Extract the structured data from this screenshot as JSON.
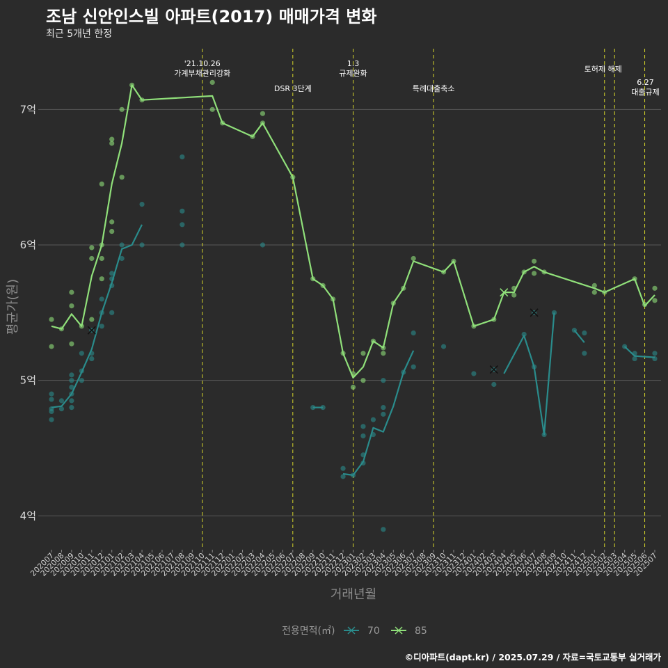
{
  "title": "조남 신안인스빌 아파트(2017) 매매가격 변화",
  "subtitle": "최근 5개년 한정",
  "caption": "©디아파트(dapt.kr) / 2025.07.29 / 자료=국토교통부 실거래가",
  "chart_data": {
    "type": "line",
    "xlabel": "거래년월",
    "ylabel": "평균가(원)",
    "ylim": [
      3.75,
      7.5
    ],
    "yticks": [
      {
        "v": 4,
        "label": "4억"
      },
      {
        "v": 5,
        "label": "5억"
      },
      {
        "v": 6,
        "label": "6억"
      },
      {
        "v": 7,
        "label": "7억"
      }
    ],
    "x_categories": [
      "202007",
      "202008",
      "202009",
      "202010",
      "202011",
      "202012",
      "202101",
      "202102",
      "202103",
      "202104",
      "202105",
      "202106",
      "202107",
      "202108",
      "202109",
      "202110",
      "202111",
      "202112",
      "202201",
      "202202",
      "202203",
      "202204",
      "202205",
      "202206",
      "202207",
      "202208",
      "202209",
      "202210",
      "202211",
      "202212",
      "202301",
      "202302",
      "202303",
      "202304",
      "202305",
      "202306",
      "202307",
      "202308",
      "202309",
      "202310",
      "202311",
      "202312",
      "202401",
      "202402",
      "202403",
      "202404",
      "202405",
      "202406",
      "202407",
      "202408",
      "202409",
      "202410",
      "202411",
      "202412",
      "202501",
      "202502",
      "202503",
      "202504",
      "202505",
      "202506",
      "202507"
    ],
    "grid": true,
    "legend": {
      "title": "전용면적(㎡)",
      "position": "bottom"
    },
    "series": [
      {
        "name": "70",
        "color": "#2a8c8c",
        "segments": [
          [
            [
              0,
              4.8
            ],
            [
              1,
              4.81
            ],
            [
              2,
              4.9
            ],
            [
              3,
              5.06
            ],
            [
              4,
              5.23
            ],
            [
              5,
              5.5
            ],
            [
              6,
              5.72
            ],
            [
              7,
              5.97
            ],
            [
              8,
              6.0
            ],
            [
              9,
              6.15
            ]
          ],
          [
            [
              26,
              4.8
            ],
            [
              27,
              4.8
            ]
          ],
          [
            [
              29,
              4.31
            ],
            [
              30,
              4.3
            ],
            [
              31,
              4.4
            ],
            [
              32,
              4.65
            ],
            [
              33,
              4.62
            ],
            [
              34,
              4.81
            ],
            [
              35,
              5.06
            ],
            [
              36,
              5.22
            ]
          ],
          [
            [
              45,
              5.05
            ],
            [
              47,
              5.33
            ],
            [
              48,
              5.1
            ],
            [
              49,
              4.6
            ],
            [
              50,
              5.5
            ]
          ],
          [
            [
              52,
              5.37
            ],
            [
              53,
              5.28
            ]
          ],
          [
            [
              57,
              5.25
            ],
            [
              58,
              5.18
            ],
            [
              60,
              5.17
            ]
          ]
        ],
        "points": [
          [
            0,
            4.9
          ],
          [
            0,
            4.86
          ],
          [
            0,
            4.79
          ],
          [
            0,
            4.77
          ],
          [
            0,
            4.71
          ],
          [
            1,
            4.85
          ],
          [
            1,
            4.79
          ],
          [
            2,
            5.04
          ],
          [
            2,
            5.0
          ],
          [
            2,
            4.95
          ],
          [
            2,
            4.9
          ],
          [
            2,
            4.85
          ],
          [
            2,
            4.8
          ],
          [
            3,
            5.2
          ],
          [
            3,
            5.07
          ],
          [
            3,
            5.0
          ],
          [
            4,
            5.2
          ],
          [
            4,
            5.16
          ],
          [
            4,
            5.37
          ],
          [
            5,
            5.6
          ],
          [
            5,
            5.5
          ],
          [
            5,
            5.4
          ],
          [
            6,
            5.79
          ],
          [
            6,
            5.75
          ],
          [
            6,
            5.7
          ],
          [
            6,
            5.5
          ],
          [
            7,
            6.0
          ],
          [
            7,
            5.9
          ],
          [
            9,
            6.3
          ],
          [
            9,
            6.0
          ],
          [
            13,
            6.65
          ],
          [
            13,
            6.25
          ],
          [
            13,
            6.15
          ],
          [
            13,
            6.0
          ],
          [
            21,
            6.0
          ],
          [
            26,
            4.8
          ],
          [
            27,
            4.8
          ],
          [
            29,
            4.35
          ],
          [
            29,
            4.29
          ],
          [
            30,
            4.3
          ],
          [
            31,
            4.66
          ],
          [
            31,
            4.59
          ],
          [
            31,
            4.45
          ],
          [
            31,
            4.39
          ],
          [
            32,
            4.71
          ],
          [
            32,
            4.6
          ],
          [
            33,
            5.0
          ],
          [
            33,
            4.8
          ],
          [
            33,
            4.75
          ],
          [
            33,
            3.9
          ],
          [
            35,
            5.06
          ],
          [
            36,
            5.35
          ],
          [
            36,
            5.1
          ],
          [
            39,
            5.25
          ],
          [
            42,
            5.05
          ],
          [
            44,
            4.97
          ],
          [
            44,
            5.08
          ],
          [
            47,
            5.34
          ],
          [
            48,
            5.1
          ],
          [
            48,
            5.5
          ],
          [
            49,
            4.6
          ],
          [
            50,
            5.5
          ],
          [
            52,
            5.37
          ],
          [
            53,
            5.35
          ],
          [
            53,
            5.2
          ],
          [
            57,
            5.25
          ],
          [
            58,
            5.2
          ],
          [
            58,
            5.16
          ],
          [
            60,
            5.2
          ],
          [
            60,
            5.16
          ]
        ],
        "crosses": [
          [
            4,
            5.37
          ],
          [
            44,
            5.08
          ],
          [
            48,
            5.5
          ]
        ]
      },
      {
        "name": "85",
        "color": "#90e07a",
        "segments": [
          [
            [
              0,
              5.4
            ],
            [
              1,
              5.38
            ],
            [
              2,
              5.49
            ],
            [
              3,
              5.4
            ],
            [
              4,
              5.77
            ],
            [
              5,
              6.0
            ],
            [
              6,
              6.45
            ],
            [
              7,
              6.75
            ],
            [
              8,
              7.18
            ],
            [
              9,
              7.07
            ],
            [
              16,
              7.1
            ],
            [
              17,
              6.9
            ],
            [
              20,
              6.8
            ],
            [
              21,
              6.9
            ],
            [
              24,
              6.5
            ],
            [
              26,
              5.75
            ],
            [
              27,
              5.7
            ],
            [
              28,
              5.6
            ],
            [
              29,
              5.2
            ],
            [
              30,
              5.02
            ],
            [
              31,
              5.1
            ],
            [
              32,
              5.29
            ],
            [
              33,
              5.24
            ],
            [
              34,
              5.57
            ],
            [
              35,
              5.68
            ],
            [
              36,
              5.88
            ],
            [
              39,
              5.8
            ],
            [
              40,
              5.88
            ],
            [
              42,
              5.4
            ],
            [
              44,
              5.45
            ],
            [
              45,
              5.65
            ],
            [
              46,
              5.65
            ],
            [
              47,
              5.8
            ],
            [
              48,
              5.84
            ],
            [
              49,
              5.8
            ],
            [
              54,
              5.68
            ],
            [
              55,
              5.65
            ],
            [
              58,
              5.75
            ],
            [
              59,
              5.55
            ],
            [
              60,
              5.63
            ]
          ]
        ],
        "points": [
          [
            0,
            5.45
          ],
          [
            0,
            5.25
          ],
          [
            1,
            5.38
          ],
          [
            2,
            5.65
          ],
          [
            2,
            5.55
          ],
          [
            2,
            5.27
          ],
          [
            3,
            5.4
          ],
          [
            4,
            5.98
          ],
          [
            4,
            5.9
          ],
          [
            4,
            5.45
          ],
          [
            5,
            6.45
          ],
          [
            5,
            6.0
          ],
          [
            5,
            5.9
          ],
          [
            5,
            5.75
          ],
          [
            6,
            6.78
          ],
          [
            6,
            6.75
          ],
          [
            6,
            6.17
          ],
          [
            6,
            6.1
          ],
          [
            7,
            7.0
          ],
          [
            7,
            6.5
          ],
          [
            8,
            7.18
          ],
          [
            9,
            7.07
          ],
          [
            16,
            7.2
          ],
          [
            16,
            7.0
          ],
          [
            17,
            6.9
          ],
          [
            20,
            6.8
          ],
          [
            21,
            6.97
          ],
          [
            21,
            6.9
          ],
          [
            24,
            6.5
          ],
          [
            26,
            5.75
          ],
          [
            27,
            5.7
          ],
          [
            28,
            5.6
          ],
          [
            29,
            5.2
          ],
          [
            30,
            4.95
          ],
          [
            30,
            5.05
          ],
          [
            31,
            5.2
          ],
          [
            31,
            5.0
          ],
          [
            32,
            5.29
          ],
          [
            33,
            5.24
          ],
          [
            33,
            5.2
          ],
          [
            34,
            5.57
          ],
          [
            35,
            5.68
          ],
          [
            36,
            5.9
          ],
          [
            39,
            5.8
          ],
          [
            40,
            5.88
          ],
          [
            42,
            5.4
          ],
          [
            44,
            5.45
          ],
          [
            46,
            5.68
          ],
          [
            46,
            5.63
          ],
          [
            47,
            5.8
          ],
          [
            48,
            5.88
          ],
          [
            48,
            5.79
          ],
          [
            49,
            5.8
          ],
          [
            54,
            5.7
          ],
          [
            54,
            5.65
          ],
          [
            55,
            5.65
          ],
          [
            58,
            5.75
          ],
          [
            59,
            5.56
          ],
          [
            60,
            5.68
          ],
          [
            60,
            5.59
          ]
        ],
        "crosses": [
          [
            45,
            5.65
          ]
        ]
      }
    ],
    "annotations": [
      {
        "x": 15,
        "lines": [
          "'21.10.26",
          "가계부채관리강화"
        ],
        "pos": "high"
      },
      {
        "x": 24,
        "lines": [
          "DSR 3단계"
        ],
        "pos": "low"
      },
      {
        "x": 30,
        "lines": [
          "1.3",
          "규제완화"
        ],
        "pos": "high"
      },
      {
        "x": 38,
        "lines": [
          "특례대출축소"
        ],
        "pos": "low"
      },
      {
        "x": 55,
        "lines": [
          "토허제 해제"
        ],
        "pos": "mid"
      },
      {
        "x": 56,
        "lines": [],
        "pos": "none"
      },
      {
        "x": 59,
        "lines": [
          "6.27",
          "대출규제"
        ],
        "pos": "right"
      }
    ]
  }
}
